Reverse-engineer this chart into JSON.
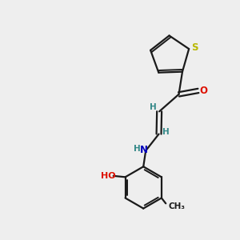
{
  "background_color": "#eeeeee",
  "bond_color": "#1a1a1a",
  "sulfur_color": "#b8b800",
  "oxygen_color": "#dd1100",
  "nitrogen_color": "#0000bb",
  "hydrogen_color": "#338888",
  "figsize": [
    3.0,
    3.0
  ],
  "dpi": 100,
  "xlim": [
    0,
    10
  ],
  "ylim": [
    0,
    10
  ]
}
